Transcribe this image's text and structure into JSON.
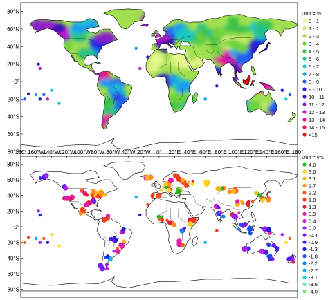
{
  "top_map": {
    "lat_ticks": [
      "80°N",
      "60°N",
      "40°N",
      "20°N",
      "0°",
      "20°S",
      "40°S",
      "60°S",
      "80°S"
    ],
    "lon_ticks": [],
    "legend": {
      "unit_label": "Unit = %",
      "entries": [
        {
          "label": "0 - 1",
          "color": "#e6f58c"
        },
        {
          "label": "1 - 2",
          "color": "#c8ee6e"
        },
        {
          "label": "2 - 3",
          "color": "#a0e050"
        },
        {
          "label": "3 - 4",
          "color": "#6fd23c"
        },
        {
          "label": "4 - 5",
          "color": "#3ec24a"
        },
        {
          "label": "5 - 6",
          "color": "#22c08a"
        },
        {
          "label": "6 - 7",
          "color": "#1fc7c4"
        },
        {
          "label": "7 - 8",
          "color": "#1e9cf0"
        },
        {
          "label": "8 - 9",
          "color": "#2060f0"
        },
        {
          "label": "9 - 10",
          "color": "#2222dd"
        },
        {
          "label": "10 - 11",
          "color": "#3a10b8"
        },
        {
          "label": "11 - 12",
          "color": "#8a20c8"
        },
        {
          "label": "12 - 13",
          "color": "#c01cc8"
        },
        {
          "label": "13 - 14",
          "color": "#e0149a"
        },
        {
          "label": "14 - 15",
          "color": "#f01055"
        },
        {
          "label": ">15",
          "color": "#e81010"
        }
      ]
    }
  },
  "bottom_map": {
    "lat_ticks": [
      "80°N",
      "60°N",
      "40°N",
      "20°N",
      "0°",
      "20°S",
      "40°S",
      "60°S",
      "80°S"
    ],
    "lon_ticks": [
      "180°",
      "160°W",
      "140°W",
      "120°W",
      "100°W",
      "80°W",
      "60°W",
      "40°W",
      "20°W",
      "0°",
      "20°E",
      "40°E",
      "60°E",
      "80°E",
      "100°E",
      "120°E",
      "140°E",
      "160°E",
      "180°"
    ],
    "legend": {
      "unit_label": "Unit = yrs",
      "entries": [
        {
          "label": "4.0",
          "color": "#22b822"
        },
        {
          "label": "3.6",
          "color": "#ffd21e"
        },
        {
          "label": "3.1",
          "color": "#ffb41e"
        },
        {
          "label": "2.7",
          "color": "#ff8c1e"
        },
        {
          "label": "2.2",
          "color": "#ff5a1e"
        },
        {
          "label": "1.8",
          "color": "#f03c1e"
        },
        {
          "label": "1.3",
          "color": "#e01e3c"
        },
        {
          "label": "0.9",
          "color": "#e01eaa"
        },
        {
          "label": "0.4",
          "color": "#c81ee6"
        },
        {
          "label": "0.0",
          "color": "#a01ef0"
        },
        {
          "label": "-0.4",
          "color": "#781ef0"
        },
        {
          "label": "-0.9",
          "color": "#4a1ee6"
        },
        {
          "label": "-1.3",
          "color": "#1e1ecc"
        },
        {
          "label": "-1.8",
          "color": "#1e50e6"
        },
        {
          "label": "-2.2",
          "color": "#1e82f0"
        },
        {
          "label": "-2.7",
          "color": "#1eaaf0"
        },
        {
          "label": "-3.1",
          "color": "#1ed2e6"
        },
        {
          "label": "-3.6",
          "color": "#64e6b4"
        },
        {
          "label": "-4.0",
          "color": "#78e678"
        }
      ]
    }
  },
  "colors": {
    "coast": "#000000",
    "land_bottom": "#ffffff",
    "ocean": "#ffffff"
  }
}
